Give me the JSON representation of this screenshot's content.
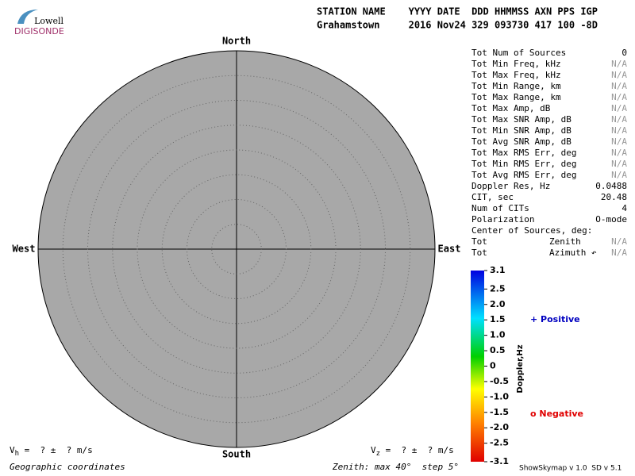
{
  "logo": {
    "top": "Lowell",
    "bottom": "DIGISONDE"
  },
  "header": {
    "line1": "STATION NAME    YYYY DATE  DDD HHMMSS AXN PPS IGP",
    "line2": "Grahamstown     2016 Nov24 329 093730 417 100 -8D"
  },
  "compass": {
    "north": "North",
    "south": "South",
    "west": "West",
    "east": "East"
  },
  "stats": [
    [
      "Tot Num of Sources",
      "0"
    ],
    [
      "Tot Min Freq, kHz",
      "N/A"
    ],
    [
      "Tot Max Freq, kHz",
      "N/A"
    ],
    [
      "Tot Min Range, km",
      "N/A"
    ],
    [
      "Tot Max Range, km",
      "N/A"
    ],
    [
      "Tot Max Amp, dB",
      "N/A"
    ],
    [
      "Tot Max SNR Amp, dB",
      "N/A"
    ],
    [
      "Tot Min SNR Amp, dB",
      "N/A"
    ],
    [
      "Tot Avg SNR Amp, dB",
      "N/A"
    ],
    [
      "Tot Max RMS Err, deg",
      "N/A"
    ],
    [
      "Tot Min RMS Err, deg",
      "N/A"
    ],
    [
      "Tot Avg RMS Err, deg",
      "N/A"
    ],
    [
      "Doppler Res, Hz",
      "0.0488"
    ],
    [
      "CIT, sec",
      "20.48"
    ],
    [
      "Num of CITs",
      "4"
    ],
    [
      "Polarization",
      "O-mode"
    ],
    [
      "Center of Sources, deg:"
    ],
    [
      "Tot",
      "Zenith",
      "N/A"
    ],
    [
      "Tot",
      "Azimuth ↶",
      "N/A"
    ]
  ],
  "colorbar": {
    "title": "Doppler,Hz",
    "lim": [
      -3.1,
      3.1
    ],
    "ticks": [
      3.1,
      2.5,
      {
        "value": 2,
        "label": "2.0"
      },
      1.5,
      {
        "value": 1,
        "label": "1.0"
      },
      0.5,
      0,
      -0.5,
      {
        "value": -1,
        "label": "-1.0"
      },
      -1.5,
      {
        "value": -2,
        "label": "-2.0"
      },
      -2.5,
      -3.1
    ]
  },
  "legend": {
    "positive": "+ Positive",
    "negative": "o Negative"
  },
  "footer": {
    "vh": "V",
    "vh_sub": "h",
    "vh_rest": " =  ? ±  ? m/s",
    "vz": "V",
    "vz_sub": "z",
    "vz_rest": " =  ? ±  ? m/s",
    "coords": "Geographic coordinates",
    "zenith": "Zenith: max 40°  step 5°",
    "version": "ShowSkymap v 1.0  SD v 5.1"
  }
}
